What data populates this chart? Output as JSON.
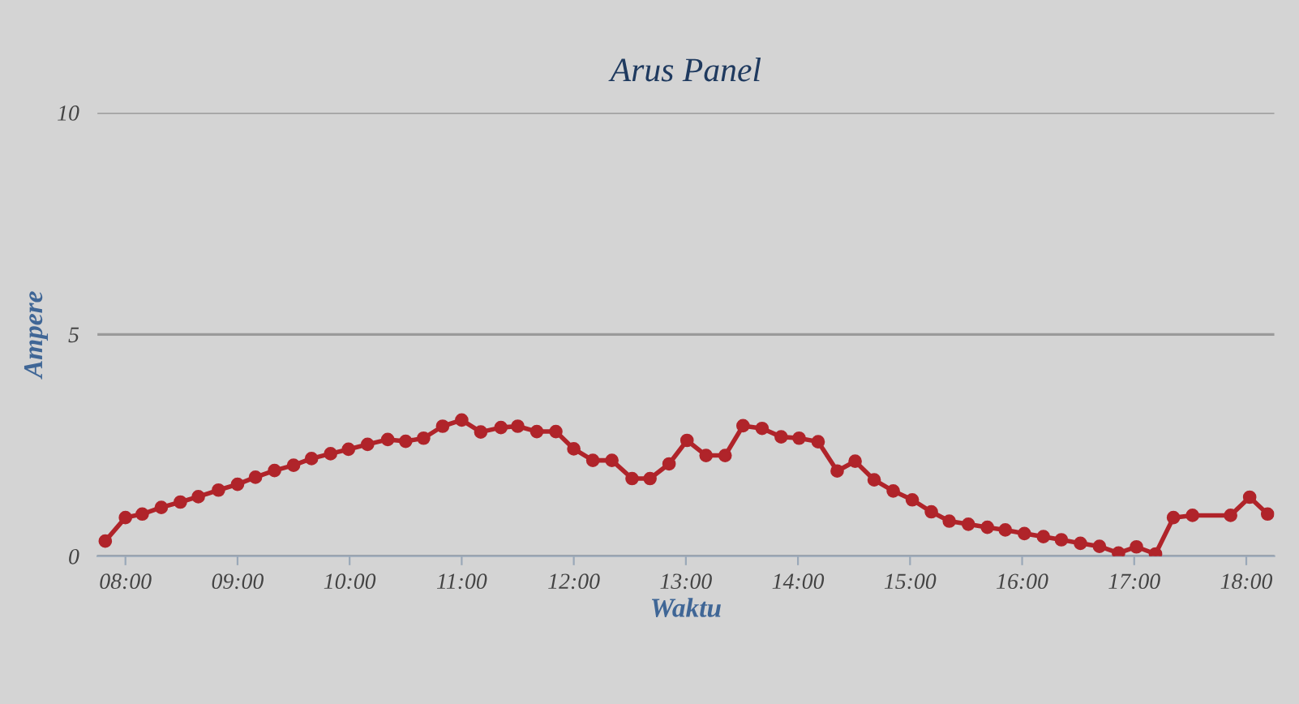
{
  "chart_data": {
    "type": "line",
    "title": "Arus Panel",
    "xlabel": "Waktu",
    "ylabel": "Ampere",
    "x": [
      7.82,
      8.0,
      8.15,
      8.32,
      8.49,
      8.65,
      8.83,
      9.0,
      9.16,
      9.33,
      9.5,
      9.66,
      9.83,
      9.99,
      10.16,
      10.34,
      10.5,
      10.66,
      10.83,
      11.0,
      11.17,
      11.35,
      11.5,
      11.67,
      11.84,
      12.0,
      12.17,
      12.34,
      12.52,
      12.68,
      12.85,
      13.01,
      13.18,
      13.35,
      13.51,
      13.68,
      13.85,
      14.01,
      14.18,
      14.35,
      14.51,
      14.68,
      14.85,
      15.02,
      15.19,
      15.35,
      15.52,
      15.69,
      15.85,
      16.02,
      16.19,
      16.35,
      16.52,
      16.69,
      16.86,
      17.02,
      17.19,
      17.35,
      17.52,
      17.86,
      18.03,
      18.19
    ],
    "series": [
      {
        "color": "#b0242a",
        "values": [
          0.34,
          0.87,
          0.95,
          1.1,
          1.22,
          1.34,
          1.49,
          1.62,
          1.78,
          1.93,
          2.05,
          2.2,
          2.31,
          2.41,
          2.52,
          2.63,
          2.59,
          2.66,
          2.93,
          3.07,
          2.8,
          2.9,
          2.93,
          2.81,
          2.81,
          2.42,
          2.16,
          2.16,
          1.75,
          1.75,
          2.08,
          2.61,
          2.27,
          2.27,
          2.94,
          2.88,
          2.69,
          2.66,
          2.58,
          1.92,
          2.14,
          1.72,
          1.47,
          1.27,
          1.0,
          0.79,
          0.72,
          0.65,
          0.59,
          0.51,
          0.44,
          0.37,
          0.29,
          0.22,
          0.07,
          0.21,
          0.05,
          0.87,
          0.92,
          0.92,
          1.33,
          0.95
        ]
      }
    ],
    "xlim": [
      7.75,
      18.25
    ],
    "xticks": [
      {
        "value": 8,
        "label": "08:00"
      },
      {
        "value": 9,
        "label": "09:00"
      },
      {
        "value": 10,
        "label": "10:00"
      },
      {
        "value": 11,
        "label": "11:00"
      },
      {
        "value": 12,
        "label": "12:00"
      },
      {
        "value": 13,
        "label": "13:00"
      },
      {
        "value": 14,
        "label": "14:00"
      },
      {
        "value": 15,
        "label": "15:00"
      },
      {
        "value": 16,
        "label": "16:00"
      },
      {
        "value": 17,
        "label": "17:00"
      },
      {
        "value": 18,
        "label": "18:00"
      }
    ],
    "ylim": [
      0,
      10
    ],
    "yticks": [
      0,
      5,
      10
    ],
    "grid": "y",
    "marker": "circle",
    "line_style": "solid"
  }
}
